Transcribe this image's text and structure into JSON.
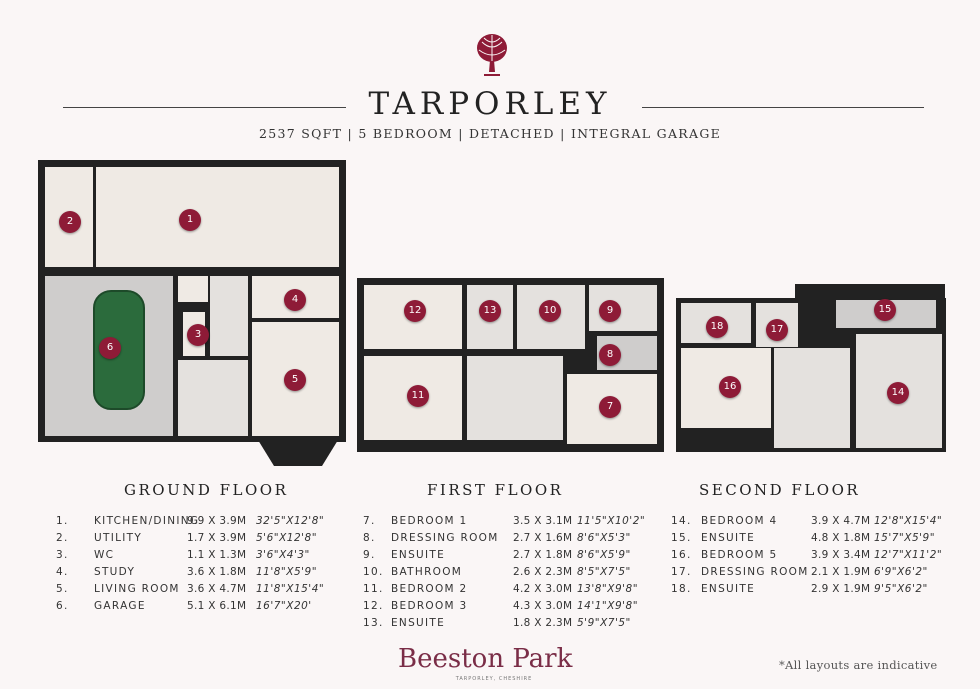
{
  "header": {
    "title": "TARPORLEY",
    "subtitle": "2537 SQFT | 5 BEDROOM | DETACHED | INTEGRAL GARAGE",
    "logo": "artichoke-emblem-icon"
  },
  "colors": {
    "marker": "#8e1b37",
    "brand": "#7a2d47"
  },
  "floors": [
    {
      "name": "GROUND FLOOR",
      "rooms": [
        {
          "no": "1.",
          "name": "KITCHEN/DINING",
          "metric": "9.9 X 3.9M",
          "imperial": "32'5\"X12'8\""
        },
        {
          "no": "2.",
          "name": "UTILITY",
          "metric": "1.7 X 3.9M",
          "imperial": "5'6\"X12'8\""
        },
        {
          "no": "3.",
          "name": "WC",
          "metric": "1.1 X 1.3M",
          "imperial": "3'6\"X4'3\""
        },
        {
          "no": "4.",
          "name": "STUDY",
          "metric": "3.6 X 1.8M",
          "imperial": "11'8\"X5'9\""
        },
        {
          "no": "5.",
          "name": "LIVING ROOM",
          "metric": "3.6 X 4.7M",
          "imperial": "11'8\"X15'4\""
        },
        {
          "no": "6.",
          "name": "GARAGE",
          "metric": "5.1 X 6.1M",
          "imperial": "16'7\"X20'"
        }
      ]
    },
    {
      "name": "FIRST FLOOR",
      "rooms": [
        {
          "no": "7.",
          "name": "BEDROOM 1",
          "metric": "3.5 X 3.1M",
          "imperial": "11'5\"X10'2\""
        },
        {
          "no": "8.",
          "name": "DRESSING ROOM",
          "metric": "2.7 X 1.6M",
          "imperial": "8'6\"X5'3\""
        },
        {
          "no": "9.",
          "name": "ENSUITE",
          "metric": "2.7 X 1.8M",
          "imperial": "8'6\"X5'9\""
        },
        {
          "no": "10.",
          "name": "BATHROOM",
          "metric": "2.6 X 2.3M",
          "imperial": "8'5\"X7'5\""
        },
        {
          "no": "11.",
          "name": "BEDROOM 2",
          "metric": "4.2 X 3.0M",
          "imperial": "13'8\"X9'8\""
        },
        {
          "no": "12.",
          "name": "BEDROOM 3",
          "metric": "4.3 X 3.0M",
          "imperial": "14'1\"X9'8\""
        },
        {
          "no": "13.",
          "name": "ENSUITE",
          "metric": "1.8 X 2.3M",
          "imperial": "5'9\"X7'5\""
        }
      ]
    },
    {
      "name": "SECOND FLOOR",
      "rooms": [
        {
          "no": "14.",
          "name": "BEDROOM 4",
          "metric": "3.9 X 4.7M",
          "imperial": "12'8\"X15'4\""
        },
        {
          "no": "15.",
          "name": "ENSUITE",
          "metric": "4.8 X 1.8M",
          "imperial": "15'7\"X5'9\""
        },
        {
          "no": "16.",
          "name": "BEDROOM 5",
          "metric": "3.9 X 3.4M",
          "imperial": "12'7\"X11'2\""
        },
        {
          "no": "17.",
          "name": "DRESSING ROOM",
          "metric": "2.1 X 1.9M",
          "imperial": "6'9\"X6'2\""
        },
        {
          "no": "18.",
          "name": "ENSUITE",
          "metric": "2.9 X 1.9M",
          "imperial": "9'5\"X6'2\""
        }
      ]
    }
  ],
  "markers": [
    "1",
    "2",
    "3",
    "4",
    "5",
    "6",
    "7",
    "8",
    "9",
    "10",
    "11",
    "12",
    "13",
    "14",
    "15",
    "16",
    "17",
    "18"
  ],
  "footer": {
    "brand": "Beeston Park",
    "brand_sub": "TARPORLEY, CHESHIRE",
    "note": "*All layouts are indicative"
  }
}
